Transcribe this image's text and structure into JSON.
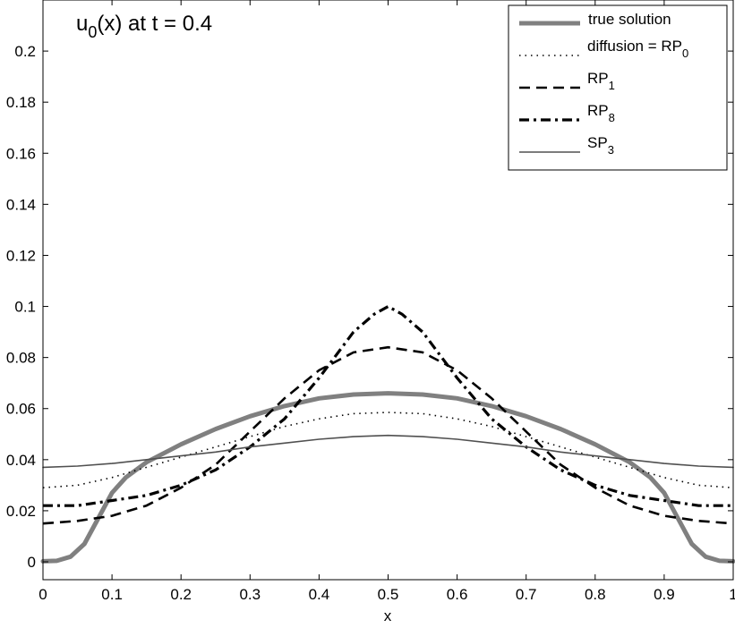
{
  "chart_data": {
    "type": "line",
    "title": "u0(x) at t = 0.4",
    "title_main": "u",
    "title_sub": "0",
    "title_rest": "(x) at t = 0.4",
    "xlabel": "x",
    "ylabel": "",
    "xlim": [
      0,
      1
    ],
    "ylim": [
      -0.007,
      0.22
    ],
    "x_ticks": [
      "0",
      "0.1",
      "0.2",
      "0.3",
      "0.4",
      "0.5",
      "0.6",
      "0.7",
      "0.8",
      "0.9",
      "1"
    ],
    "y_ticks": [
      "0",
      "0.02",
      "0.04",
      "0.06",
      "0.08",
      "0.1",
      "0.12",
      "0.14",
      "0.16",
      "0.18",
      "0.2"
    ],
    "grid": false,
    "legend_position": "top-right",
    "series": [
      {
        "name": "true solution",
        "legend_main": "true solution",
        "legend_sub": "",
        "style": "thick-solid",
        "color": "#808080",
        "x": [
          0,
          0.02,
          0.04,
          0.06,
          0.08,
          0.1,
          0.12,
          0.15,
          0.2,
          0.25,
          0.3,
          0.35,
          0.4,
          0.45,
          0.5,
          0.55,
          0.6,
          0.65,
          0.7,
          0.75,
          0.8,
          0.85,
          0.88,
          0.9,
          0.92,
          0.94,
          0.96,
          0.98,
          1
        ],
        "y": [
          0.0002,
          0.0004,
          0.002,
          0.007,
          0.017,
          0.027,
          0.033,
          0.039,
          0.046,
          0.052,
          0.057,
          0.061,
          0.064,
          0.0655,
          0.066,
          0.0655,
          0.064,
          0.061,
          0.057,
          0.052,
          0.046,
          0.039,
          0.033,
          0.027,
          0.017,
          0.007,
          0.002,
          0.0004,
          0.0002
        ]
      },
      {
        "name": "diffusion = RP0",
        "legend_main": "diffusion = RP",
        "legend_sub": "0",
        "style": "dotted",
        "color": "#000000",
        "x": [
          0,
          0.05,
          0.1,
          0.15,
          0.2,
          0.25,
          0.3,
          0.35,
          0.4,
          0.45,
          0.5,
          0.55,
          0.6,
          0.65,
          0.7,
          0.75,
          0.8,
          0.85,
          0.9,
          0.95,
          1
        ],
        "y": [
          0.029,
          0.03,
          0.033,
          0.037,
          0.041,
          0.045,
          0.049,
          0.053,
          0.056,
          0.058,
          0.0585,
          0.058,
          0.056,
          0.053,
          0.049,
          0.045,
          0.041,
          0.037,
          0.033,
          0.03,
          0.029
        ]
      },
      {
        "name": "RP1",
        "legend_main": "RP",
        "legend_sub": "1",
        "style": "dashed",
        "color": "#000000",
        "x": [
          0,
          0.05,
          0.1,
          0.15,
          0.2,
          0.25,
          0.3,
          0.35,
          0.4,
          0.45,
          0.5,
          0.55,
          0.6,
          0.65,
          0.7,
          0.75,
          0.8,
          0.85,
          0.9,
          0.95,
          1
        ],
        "y": [
          0.015,
          0.016,
          0.018,
          0.022,
          0.029,
          0.038,
          0.051,
          0.064,
          0.075,
          0.082,
          0.084,
          0.082,
          0.075,
          0.064,
          0.051,
          0.038,
          0.029,
          0.022,
          0.018,
          0.016,
          0.015
        ]
      },
      {
        "name": "RP8",
        "legend_main": "RP",
        "legend_sub": "8",
        "style": "dashdot",
        "color": "#000000",
        "x": [
          0,
          0.05,
          0.1,
          0.15,
          0.2,
          0.25,
          0.3,
          0.35,
          0.4,
          0.45,
          0.48,
          0.5,
          0.52,
          0.55,
          0.6,
          0.65,
          0.7,
          0.75,
          0.8,
          0.85,
          0.9,
          0.95,
          1
        ],
        "y": [
          0.022,
          0.022,
          0.024,
          0.026,
          0.03,
          0.036,
          0.045,
          0.056,
          0.072,
          0.09,
          0.097,
          0.1,
          0.097,
          0.09,
          0.072,
          0.056,
          0.045,
          0.036,
          0.03,
          0.026,
          0.024,
          0.022,
          0.022
        ]
      },
      {
        "name": "SP3",
        "legend_main": "SP",
        "legend_sub": "3",
        "style": "thin-solid",
        "color": "#505050",
        "x": [
          0,
          0.05,
          0.1,
          0.15,
          0.2,
          0.25,
          0.3,
          0.35,
          0.4,
          0.45,
          0.5,
          0.55,
          0.6,
          0.65,
          0.7,
          0.75,
          0.8,
          0.85,
          0.9,
          0.95,
          1
        ],
        "y": [
          0.037,
          0.0375,
          0.0385,
          0.04,
          0.0415,
          0.043,
          0.045,
          0.0465,
          0.048,
          0.049,
          0.0495,
          0.049,
          0.048,
          0.0465,
          0.045,
          0.043,
          0.0415,
          0.04,
          0.0385,
          0.0375,
          0.037
        ]
      }
    ]
  }
}
